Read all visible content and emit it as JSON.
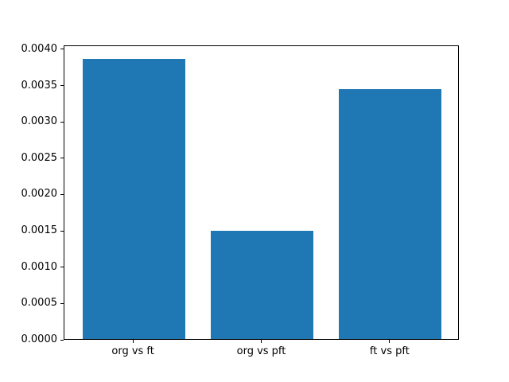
{
  "chart_data": {
    "type": "bar",
    "categories": [
      "org vs ft",
      "org vs pft",
      "ft vs pft"
    ],
    "values": [
      0.00386,
      0.00149,
      0.00344
    ],
    "bar_color": "#1f77b4",
    "ytick_labels": [
      "0.0000",
      "0.0005",
      "0.0010",
      "0.0015",
      "0.0020",
      "0.0025",
      "0.0030",
      "0.0035",
      "0.0040"
    ],
    "ytick_values": [
      0.0,
      0.0005,
      0.001,
      0.0015,
      0.002,
      0.0025,
      0.003,
      0.0035,
      0.004
    ],
    "ylim": [
      0,
      0.004054
    ],
    "xlim": [
      -0.54,
      2.54
    ],
    "bar_width": 0.8,
    "grid": false,
    "legend_position": "none",
    "spine_color": "#000000",
    "background_color": "#ffffff"
  }
}
